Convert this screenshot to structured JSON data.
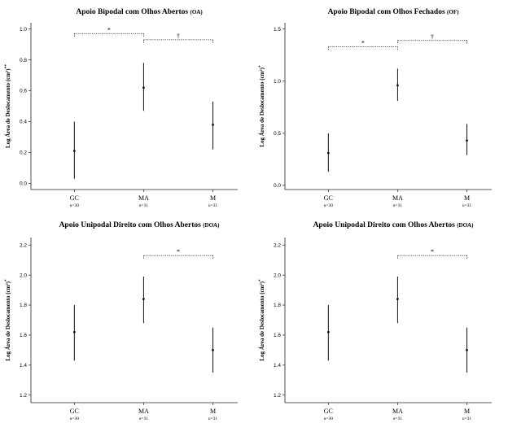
{
  "chart_data": [
    {
      "type": "errorbar",
      "title": "Apoio Bipodal com Olhos Abertos",
      "title_suffix": "(OA)",
      "ylabel": "Log Área de Deslocamento (cm²)",
      "ylabel_mark": "**",
      "ylim": [
        -0.04,
        1.04
      ],
      "yticks": [
        0.0,
        0.2,
        0.4,
        0.6,
        0.8,
        1.0
      ],
      "ytick_labels": [
        "0.0",
        "0.2",
        "0.4",
        "0.6",
        "0.8",
        "1.0"
      ],
      "categories": [
        "GC",
        "MA",
        "M"
      ],
      "n_labels": [
        "n=30",
        "n=31",
        "n=31"
      ],
      "mean": [
        0.21,
        0.62,
        0.38
      ],
      "lower": [
        0.03,
        0.47,
        0.22
      ],
      "upper": [
        0.4,
        0.78,
        0.53
      ],
      "comparisons": [
        {
          "from": 0,
          "to": 1,
          "y": 0.97,
          "symbol": "*"
        },
        {
          "from": 1,
          "to": 2,
          "y": 0.93,
          "symbol": "†"
        }
      ]
    },
    {
      "type": "errorbar",
      "title": "Apoio Bipodal com Olhos Fechados",
      "title_suffix": "(OF)",
      "ylabel": "Log Área de Deslocamento (cm²)",
      "ylabel_mark": "*",
      "ylim": [
        -0.04,
        1.56
      ],
      "yticks": [
        0.0,
        0.5,
        1.0,
        1.5
      ],
      "ytick_labels": [
        "0.0",
        "0.5",
        "1.0",
        "1.5"
      ],
      "categories": [
        "GC",
        "MA",
        "M"
      ],
      "n_labels": [
        "n=30",
        "n=31",
        "n=31"
      ],
      "mean": [
        0.31,
        0.96,
        0.43
      ],
      "lower": [
        0.13,
        0.81,
        0.29
      ],
      "upper": [
        0.5,
        1.12,
        0.59
      ],
      "comparisons": [
        {
          "from": 0,
          "to": 1,
          "y": 1.33,
          "symbol": "*"
        },
        {
          "from": 1,
          "to": 2,
          "y": 1.39,
          "symbol": "†"
        }
      ]
    },
    {
      "type": "errorbar",
      "title": "Apoio Unipodal Direito com Olhos Abertos",
      "title_suffix": "(DOA)",
      "ylabel": "Log Área de Deslocamento (cm²)",
      "ylabel_mark": "*",
      "ylim": [
        1.15,
        2.25
      ],
      "yticks": [
        1.2,
        1.4,
        1.6,
        1.8,
        2.0,
        2.2
      ],
      "ytick_labels": [
        "1.2",
        "1.4",
        "1.6",
        "1.8",
        "2.0",
        "2.2"
      ],
      "categories": [
        "GC",
        "MA",
        "M"
      ],
      "n_labels": [
        "n=30",
        "n=31",
        "n=31"
      ],
      "mean": [
        1.62,
        1.84,
        1.5
      ],
      "lower": [
        1.43,
        1.68,
        1.35
      ],
      "upper": [
        1.8,
        1.99,
        1.65
      ],
      "comparisons": [
        {
          "from": 1,
          "to": 2,
          "y": 2.13,
          "symbol": "*"
        }
      ]
    },
    {
      "type": "errorbar",
      "title": "Apoio Unipodal Direito com Olhos Abertos",
      "title_suffix": "(DOA)",
      "ylabel": "Log Área de Deslocamento (cm²)",
      "ylabel_mark": "*",
      "ylim": [
        1.15,
        2.25
      ],
      "yticks": [
        1.2,
        1.4,
        1.6,
        1.8,
        2.0,
        2.2
      ],
      "ytick_labels": [
        "1.2",
        "1.4",
        "1.6",
        "1.8",
        "2.0",
        "2.2"
      ],
      "categories": [
        "GC",
        "MA",
        "M"
      ],
      "n_labels": [
        "n=30",
        "n=31",
        "n=31"
      ],
      "mean": [
        1.62,
        1.84,
        1.5
      ],
      "lower": [
        1.43,
        1.68,
        1.35
      ],
      "upper": [
        1.8,
        1.99,
        1.65
      ],
      "comparisons": [
        {
          "from": 1,
          "to": 2,
          "y": 2.13,
          "symbol": "*"
        }
      ]
    }
  ]
}
